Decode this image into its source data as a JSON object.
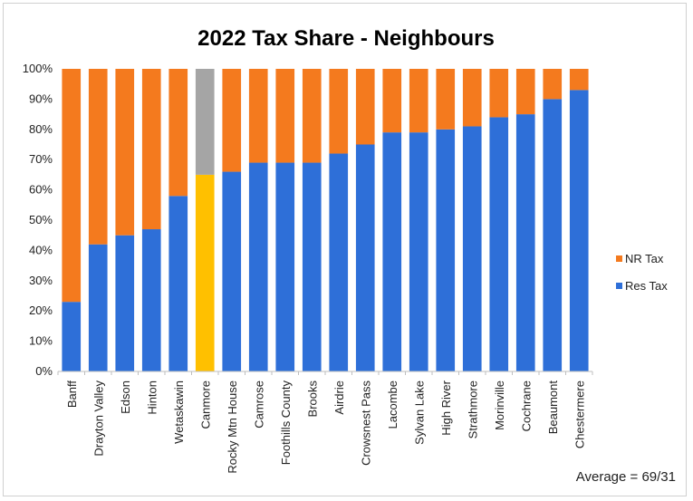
{
  "chart_data": {
    "type": "bar",
    "stacked": true,
    "percent_stacked": true,
    "title": "2022 Tax Share - Neighbours",
    "categories": [
      "Banff",
      "Drayton Valley",
      "Edson",
      "Hinton",
      "Wetaskawin",
      "Canmore",
      "Rocky Mtn House",
      "Camrose",
      "Foothills County",
      "Brooks",
      "Airdrie",
      "Crowsnest Pass",
      "Lacombe",
      "Sylvan Lake",
      "High River",
      "Strathmore",
      "Morinville",
      "Cochrane",
      "Beaumont",
      "Chestermere"
    ],
    "series": [
      {
        "name": "Res Tax",
        "color": "#2E6FD8",
        "values": [
          23,
          42,
          45,
          47,
          58,
          65,
          66,
          69,
          69,
          69,
          72,
          75,
          79,
          79,
          80,
          81,
          84,
          85,
          90,
          93
        ]
      },
      {
        "name": "NR Tax",
        "color": "#F47A1E",
        "values": [
          77,
          58,
          55,
          53,
          42,
          35,
          34,
          31,
          31,
          31,
          28,
          25,
          21,
          21,
          20,
          19,
          16,
          15,
          10,
          7
        ]
      }
    ],
    "highlight": {
      "category": "Canmore",
      "res_color": "#FFC000",
      "nr_color": "#A5A5A5"
    },
    "yticks": [
      "0%",
      "10%",
      "20%",
      "30%",
      "40%",
      "50%",
      "60%",
      "70%",
      "80%",
      "90%",
      "100%"
    ],
    "ylim": [
      0,
      100
    ],
    "legend": {
      "position": "right",
      "entries": [
        "NR Tax",
        "Res Tax"
      ]
    },
    "grid": false,
    "annotation": "Average = 69/31"
  }
}
